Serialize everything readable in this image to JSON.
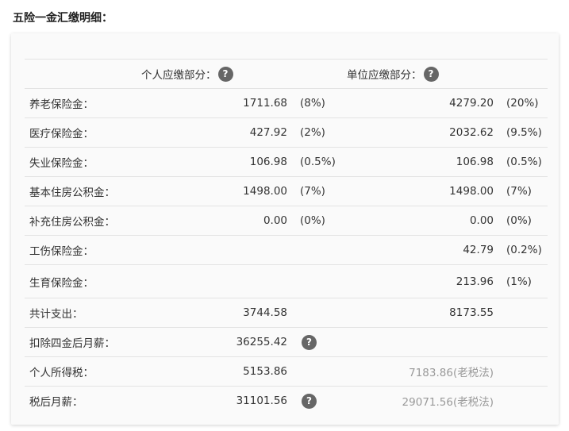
{
  "title": "五险一金汇缴明细：",
  "header": {
    "personal": "个人应缴部分：",
    "company": "单位应缴部分：",
    "help_icon": "question-circle-icon",
    "help_glyph": "?"
  },
  "rows": [
    {
      "label": "养老保险金：",
      "personal_value": "1711.68",
      "personal_rate": "(8%)",
      "company_value": "4279.20",
      "company_rate": "(20%)"
    },
    {
      "label": "医疗保险金：",
      "personal_value": "427.92",
      "personal_rate": "(2%)",
      "company_value": "2032.62",
      "company_rate": "(9.5%)"
    },
    {
      "label": "失业保险金：",
      "personal_value": "106.98",
      "personal_rate": "(0.5%)",
      "company_value": "106.98",
      "company_rate": "(0.5%)"
    },
    {
      "label": "基本住房公积金：",
      "personal_value": "1498.00",
      "personal_rate": "(7%)",
      "company_value": "1498.00",
      "company_rate": "(7%)"
    },
    {
      "label": "补充住房公积金：",
      "personal_value": "0.00",
      "personal_rate": "(0%)",
      "company_value": "0.00",
      "company_rate": "(0%)"
    },
    {
      "label": "工伤保险金：",
      "personal_value": "",
      "personal_rate": "",
      "company_value": "42.79",
      "company_rate": "(0.2%)"
    },
    {
      "label": "生育保险金：",
      "personal_value": "",
      "personal_rate": "",
      "company_value": "213.96",
      "company_rate": "(1%)"
    }
  ],
  "summary": [
    {
      "label": "共计支出：",
      "personal_value": "3744.58",
      "help": false,
      "company_value": "8173.55",
      "muted": false
    },
    {
      "label": "扣除四金后月薪：",
      "personal_value": "36255.42",
      "help": true,
      "company_value": "",
      "muted": false
    },
    {
      "label": "个人所得税：",
      "personal_value": "5153.86",
      "help": false,
      "company_value": "7183.86(老税法)",
      "muted": true
    },
    {
      "label": "税后月薪：",
      "personal_value": "31101.56",
      "help": true,
      "company_value": "29071.56(老税法)",
      "muted": true
    }
  ]
}
